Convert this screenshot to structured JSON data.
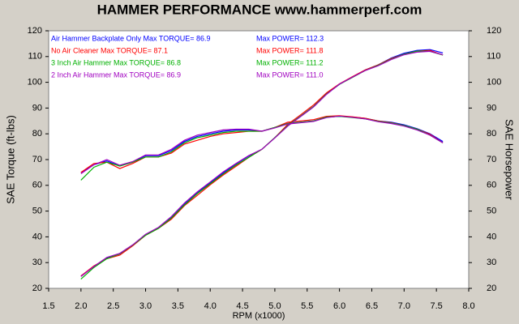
{
  "chart_data": {
    "type": "line",
    "title": "HAMMER PERFORMANCE www.hammerperf.com",
    "xlabel": "RPM (x1000)",
    "ylabel": "SAE Torque (ft-lbs)",
    "y2label": "SAE Horsepower",
    "xlim": [
      1.5,
      8.0
    ],
    "xticks": [
      1.5,
      {
        "value": 2,
        "label": "2.0"
      },
      2.5,
      {
        "value": 3,
        "label": "3.0"
      },
      3.5,
      {
        "value": 4,
        "label": "4.0"
      },
      4.5,
      {
        "value": 5,
        "label": "5.0"
      },
      5.5,
      {
        "value": 6,
        "label": "6.0"
      },
      6.5,
      {
        "value": 7,
        "label": "7.0"
      },
      7.5,
      {
        "value": 8,
        "label": "8.0"
      }
    ],
    "ylim": [
      20,
      120
    ],
    "yticks": [
      20,
      30,
      40,
      50,
      60,
      70,
      80,
      90,
      100,
      110,
      120
    ],
    "y2lim": [
      20,
      120
    ],
    "y2ticks": [
      20,
      30,
      40,
      50,
      60,
      70,
      80,
      90,
      100,
      110,
      120
    ],
    "x": [
      2.0,
      2.2,
      2.4,
      2.6,
      2.8,
      3.0,
      3.2,
      3.4,
      3.6,
      3.8,
      4.0,
      4.2,
      4.4,
      4.6,
      4.8,
      5.0,
      5.2,
      5.4,
      5.6,
      5.8,
      6.0,
      6.2,
      6.4,
      6.6,
      6.8,
      7.0,
      7.2,
      7.4,
      7.6
    ],
    "series": [
      {
        "name": "Air Hammer Backplate Only Max TORQUE= 86.9",
        "color": "#0000ff",
        "values": [
          65,
          68,
          69.5,
          67.5,
          69,
          71.5,
          71.5,
          73.5,
          77,
          79,
          80,
          81,
          81.5,
          81.5,
          81,
          82.5,
          84,
          84.5,
          85,
          86.5,
          86.8,
          86.5,
          86,
          85,
          84.5,
          83.5,
          82,
          80,
          77
        ]
      },
      {
        "name": "Max POWER= 112.3",
        "color": "#0000ff",
        "axis": "y2",
        "values": [
          24.8,
          28.5,
          31.8,
          33.4,
          36.8,
          40.8,
          43.6,
          47.6,
          52.8,
          57.2,
          60.9,
          64.8,
          68.3,
          71.4,
          74.0,
          78.5,
          83.2,
          86.9,
          90.6,
          95.5,
          99.2,
          102.1,
          104.8,
          106.8,
          109.4,
          111.3,
          112.4,
          112.7,
          111.4
        ]
      },
      {
        "name": "No Air Cleaner Max TORQUE= 87.1",
        "color": "#ff0000",
        "values": [
          65,
          68.5,
          69,
          66.5,
          68.5,
          71,
          71,
          72.5,
          76,
          77.5,
          79,
          80,
          80.5,
          81,
          81,
          82.5,
          84.5,
          85,
          85.5,
          86.8,
          87,
          86.6,
          86,
          85,
          84.3,
          83.2,
          81.8,
          79.8,
          76.5
        ]
      },
      {
        "name": "Max POWER= 111.8",
        "color": "#ff0000",
        "axis": "y2",
        "values": [
          24.8,
          28.7,
          31.5,
          32.9,
          36.5,
          40.6,
          43.3,
          46.9,
          52.1,
          56.1,
          60.2,
          64.0,
          67.4,
          70.9,
          74.0,
          78.5,
          83.7,
          87.4,
          91.2,
          95.9,
          99.4,
          102.2,
          104.8,
          106.8,
          109.2,
          110.9,
          112.1,
          112.4,
          110.6
        ]
      },
      {
        "name": "3 Inch Air Hammer Max TORQUE= 86.8",
        "color": "#00b000",
        "values": [
          62,
          67,
          69,
          67.5,
          69,
          71,
          71,
          73,
          76.5,
          78.5,
          79.5,
          80.5,
          81,
          81,
          81,
          82.5,
          84,
          84.5,
          85,
          86.5,
          86.8,
          86.3,
          85.8,
          84.8,
          84.2,
          83.2,
          81.8,
          79.5,
          76.5
        ]
      },
      {
        "name": "Max POWER= 111.2",
        "color": "#00b000",
        "axis": "y2",
        "values": [
          23.6,
          28.1,
          31.5,
          33.4,
          36.8,
          40.6,
          43.3,
          47.3,
          52.4,
          56.8,
          60.6,
          64.4,
          67.9,
          70.9,
          74.0,
          78.5,
          83.2,
          86.9,
          90.6,
          95.5,
          99.2,
          101.9,
          104.6,
          106.6,
          109.0,
          110.9,
          112.1,
          112.0,
          110.6
        ]
      },
      {
        "name": "2 Inch Air Hammer Max TORQUE= 86.9",
        "color": "#a000c0",
        "values": [
          64.5,
          68,
          70,
          67.8,
          69.2,
          71.8,
          71.8,
          74,
          77.5,
          79.5,
          80.5,
          81.5,
          81.8,
          81.8,
          81,
          82.3,
          83.8,
          84.3,
          84.8,
          86.3,
          86.9,
          86.4,
          85.8,
          84.7,
          84,
          83,
          81.5,
          79.5,
          76.5
        ]
      },
      {
        "name": "Max POWER= 111.0",
        "color": "#a000c0",
        "axis": "y2",
        "values": [
          24.6,
          28.5,
          32.0,
          33.6,
          36.9,
          41.0,
          43.7,
          47.9,
          53.1,
          57.5,
          61.3,
          65.2,
          68.5,
          71.6,
          74.0,
          78.4,
          83.0,
          86.7,
          90.4,
          95.3,
          99.3,
          102.0,
          104.6,
          106.4,
          108.8,
          110.7,
          111.7,
          112.0,
          110.7
        ]
      }
    ]
  }
}
